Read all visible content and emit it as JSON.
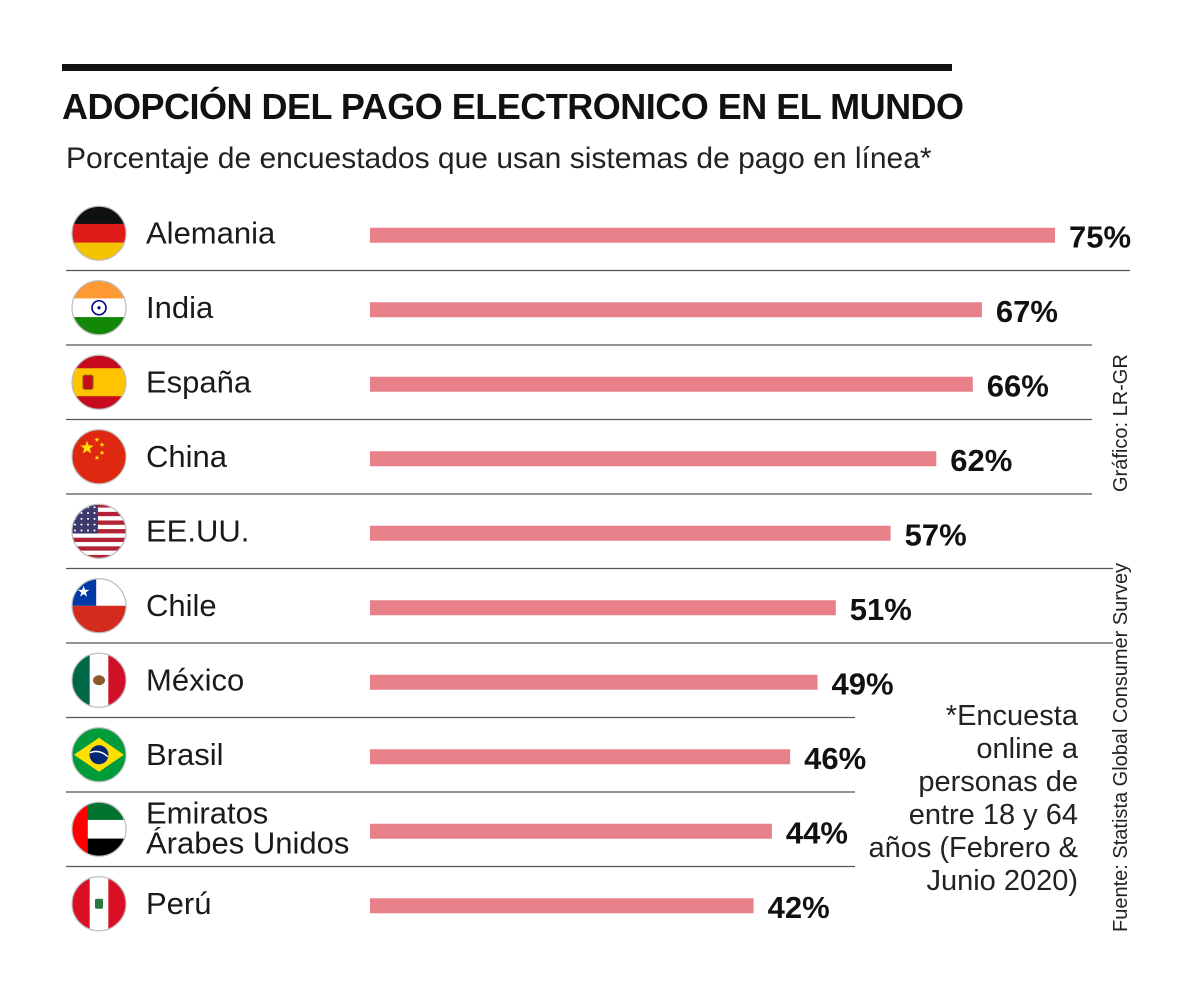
{
  "header": {
    "title": "ADOPCIÓN DEL PAGO ELECTRONICO EN EL MUNDO",
    "subtitle": "Porcentaje de encuestados que usan sistemas de pago en línea*"
  },
  "side": {
    "credit": "Gráfico: LR-GR",
    "source": "Fuente: Statista Global Consumer Survey"
  },
  "note": "*Encuesta online a personas de entre 18 y 64 años (Febrero & Junio 2020)",
  "colors": {
    "bar": "#e8808a",
    "divider": "#555555",
    "text": "#1a1a1a"
  },
  "chart_data": {
    "type": "bar",
    "orientation": "horizontal",
    "title": "ADOPCIÓN DEL PAGO ELECTRONICO EN EL MUNDO",
    "subtitle": "Porcentaje de encuestados que usan sistemas de pago en línea*",
    "categories": [
      [
        "Alemania"
      ],
      [
        "India"
      ],
      [
        "España"
      ],
      [
        "China"
      ],
      [
        "EE.UU."
      ],
      [
        "Chile"
      ],
      [
        "México"
      ],
      [
        "Brasil"
      ],
      [
        "Emiratos",
        "Árabes Unidos"
      ],
      [
        "Perú"
      ]
    ],
    "values": [
      75,
      67,
      66,
      62,
      57,
      51,
      49,
      46,
      44,
      42
    ],
    "value_labels": [
      "75%",
      "67%",
      "66%",
      "62%",
      "57%",
      "51%",
      "49%",
      "46%",
      "44%",
      "42%"
    ],
    "flags": [
      "germany-flag",
      "india-flag",
      "spain-flag",
      "china-flag",
      "usa-flag",
      "chile-flag",
      "mexico-flag",
      "brazil-flag",
      "uae-flag",
      "peru-flag"
    ],
    "unit": "%",
    "xlim": [
      0,
      75
    ]
  }
}
